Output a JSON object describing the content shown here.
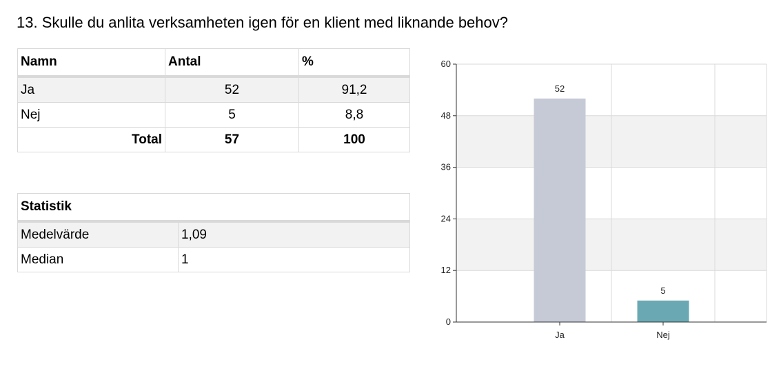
{
  "question": "13. Skulle du anlita verksamheten igen för en klient med liknande behov?",
  "freq_table": {
    "headers": [
      "Namn",
      "Antal",
      "%"
    ],
    "rows": [
      {
        "name": "Ja",
        "count": "52",
        "pct": "91,2"
      },
      {
        "name": "Nej",
        "count": "5",
        "pct": "8,8"
      }
    ],
    "total": {
      "name": "Total",
      "count": "57",
      "pct": "100"
    }
  },
  "stats_table": {
    "header": "Statistik",
    "rows": [
      {
        "name": "Medelvärde",
        "value": "1,09"
      },
      {
        "name": "Median",
        "value": "1"
      }
    ]
  },
  "chart_data": {
    "type": "bar",
    "categories": [
      "Ja",
      "Nej"
    ],
    "values": [
      52,
      5
    ],
    "data_labels": [
      "52",
      "5"
    ],
    "ylim": [
      0,
      60
    ],
    "yticks": [
      0,
      12,
      24,
      36,
      48,
      60
    ],
    "bar_colors": [
      "#c5cad6",
      "#6aa9b3"
    ],
    "grid": true,
    "legend": "none"
  }
}
